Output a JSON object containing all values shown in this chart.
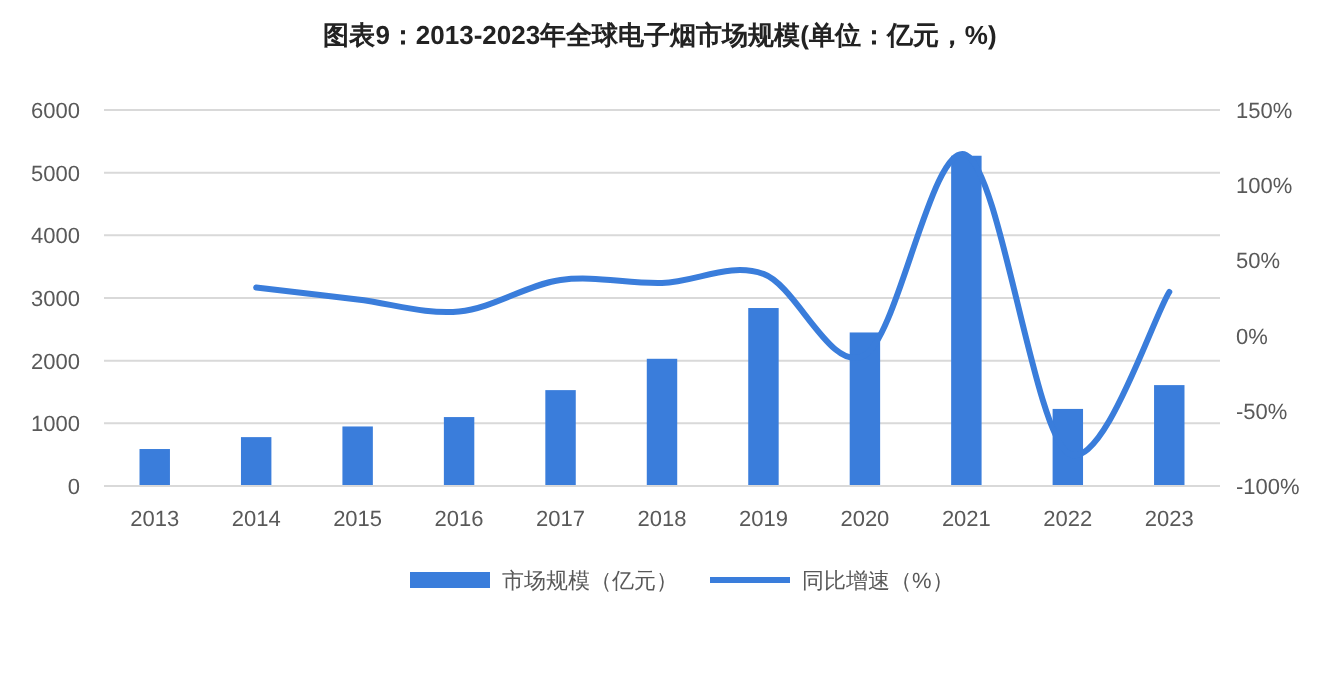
{
  "chart_data": {
    "type": "bar",
    "title": "图表9：2013-2023年全球电子烟市场规模(单位：亿元，%)",
    "categories": [
      "2013",
      "2014",
      "2015",
      "2016",
      "2017",
      "2018",
      "2019",
      "2020",
      "2021",
      "2022",
      "2023"
    ],
    "series": [
      {
        "name": "市场规模（亿元）",
        "color": "#3a7ddb",
        "values": [
          590,
          780,
          950,
          1100,
          1530,
          2030,
          2840,
          2450,
          5270,
          1230,
          1610
        ]
      },
      {
        "name": "同比增速（%）",
        "type": "line",
        "axis": "y2",
        "color": "#3a7ddb",
        "values": [
          null,
          32,
          24,
          16,
          37,
          35,
          41,
          -13,
          120,
          -78,
          29
        ]
      }
    ],
    "ylim": [
      0,
      6000
    ],
    "yticks": [
      0,
      1000,
      2000,
      3000,
      4000,
      5000,
      6000
    ],
    "y2lim": [
      -100,
      150
    ],
    "y2ticks": [
      {
        "value": -100,
        "label": "-100%"
      },
      {
        "value": -50,
        "label": "-50%"
      },
      {
        "value": 0,
        "label": "0%"
      },
      {
        "value": 50,
        "label": "50%"
      },
      {
        "value": 100,
        "label": "100%"
      },
      {
        "value": 150,
        "label": "150%"
      }
    ],
    "grid": "y",
    "legend": "bottom",
    "marker": "none",
    "line_style": "solid"
  }
}
